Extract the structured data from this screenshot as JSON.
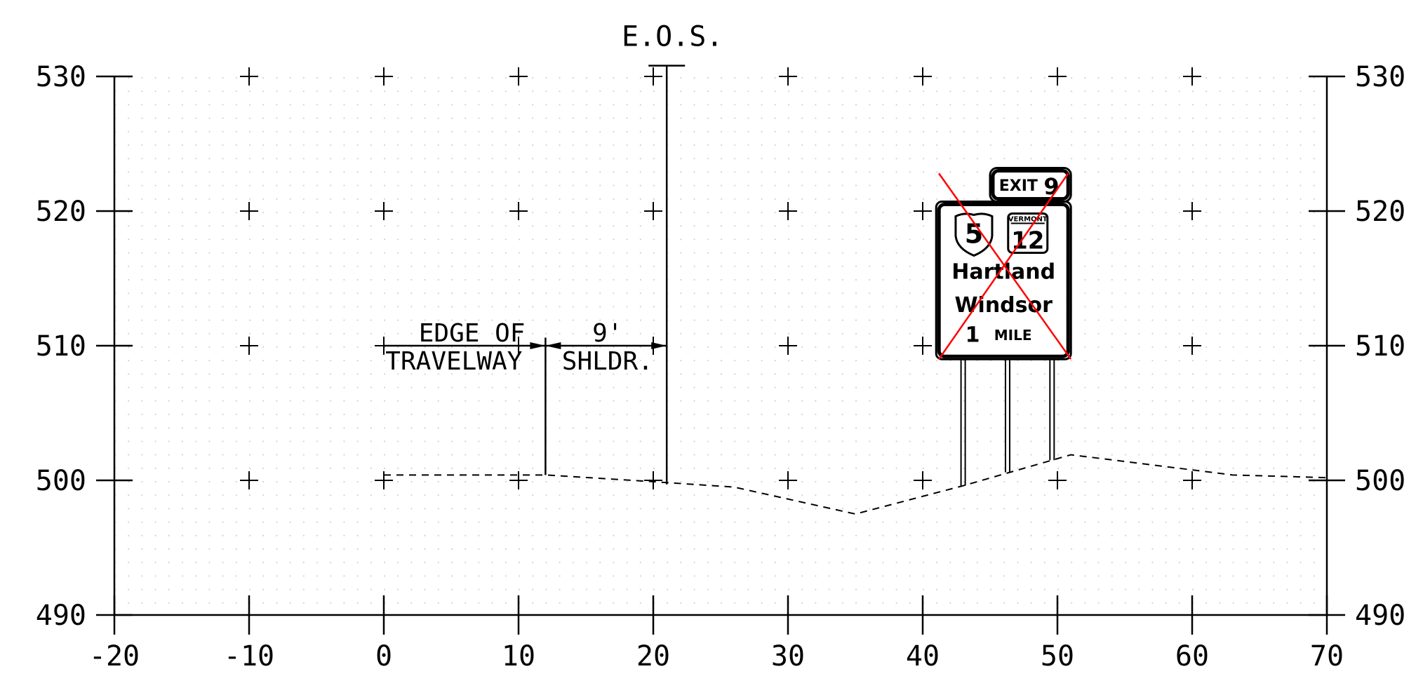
{
  "axes": {
    "x_ticks": [
      "-20",
      "-10",
      "0",
      "10",
      "20",
      "30",
      "40",
      "50",
      "60",
      "70"
    ],
    "y_ticks": [
      "490",
      "500",
      "510",
      "520",
      "530"
    ],
    "x_range": [
      -20,
      70
    ],
    "y_range": [
      490,
      530
    ]
  },
  "annotations": {
    "eos_label": "E.O.S.",
    "edge_line1": "EDGE OF",
    "edge_line2": "TRAVELWAY",
    "shoulder_width": "9'",
    "shoulder_label": "SHLDR."
  },
  "profile": {
    "ground": [
      [
        0,
        500.4
      ],
      [
        12,
        500.4
      ],
      [
        20,
        499.9
      ],
      [
        26,
        499.5
      ],
      [
        35,
        497.5
      ],
      [
        43,
        499.6
      ],
      [
        51,
        501.9
      ],
      [
        63,
        500.4
      ],
      [
        70,
        500.2
      ]
    ],
    "edge_of_travelway_x": 12,
    "eos_x": 21
  },
  "sign": {
    "exit_label": "EXIT",
    "exit_number": "9",
    "route_us": "5",
    "route_state_tag": "VERMONT",
    "route_state": "12",
    "line1": "Hartland",
    "line2": "Windsor",
    "distance_number": "1",
    "distance_unit": "MILE",
    "crossed_out": true,
    "x_left": 41,
    "x_right": 51,
    "y_bottom": 509,
    "y_top": 520.7,
    "exit_tab_x_left": 45,
    "exit_tab_x_right": 51,
    "exit_tab_y_top": 523.2,
    "posts_x": [
      43,
      46.3,
      49.6
    ],
    "posts_y_bottom": [
      499.6,
      500.6,
      501.5
    ]
  },
  "colors": {
    "line": "#000000",
    "cross": "#ff0000",
    "grid_dots": "#c8c8c8"
  }
}
